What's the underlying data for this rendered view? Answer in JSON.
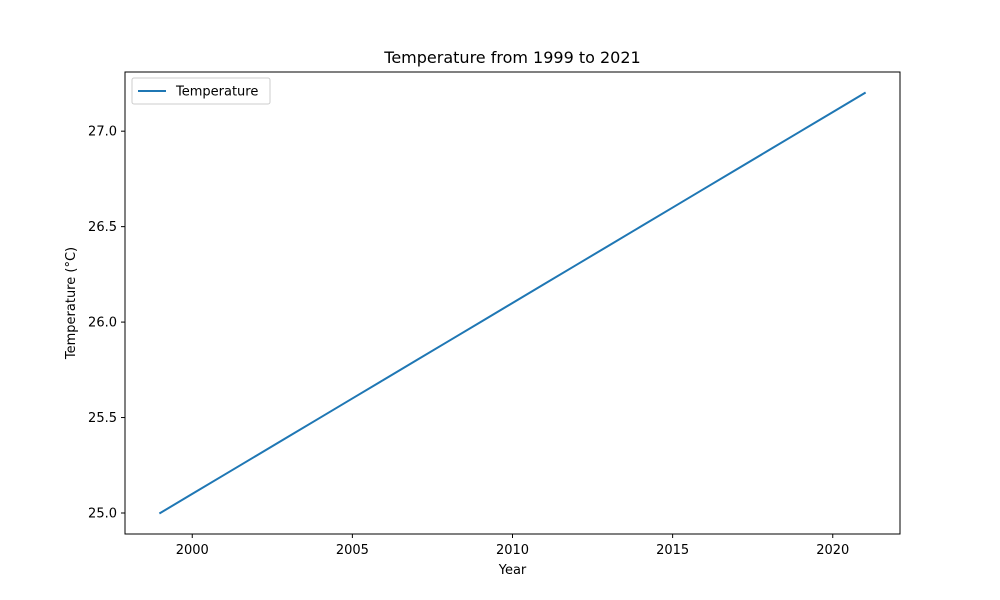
{
  "chart_data": {
    "type": "line",
    "title": "Temperature from 1999 to 2021",
    "xlabel": "Year",
    "ylabel": "Temperature (°C)",
    "xlim": [
      1997.9,
      2022.1
    ],
    "ylim": [
      24.89,
      27.31
    ],
    "xticks": [
      2000,
      2005,
      2010,
      2015,
      2020
    ],
    "xtick_labels": [
      "2000",
      "2005",
      "2010",
      "2015",
      "2020"
    ],
    "yticks": [
      25.0,
      25.5,
      26.0,
      26.5,
      27.0
    ],
    "ytick_labels": [
      "25.0",
      "25.5",
      "26.0",
      "26.5",
      "27.0"
    ],
    "grid": false,
    "legend_position": "top-left",
    "series": [
      {
        "name": "Temperature",
        "color": "#1f77b4",
        "x": [
          1999,
          2000,
          2001,
          2002,
          2003,
          2004,
          2005,
          2006,
          2007,
          2008,
          2009,
          2010,
          2011,
          2012,
          2013,
          2014,
          2015,
          2016,
          2017,
          2018,
          2019,
          2020,
          2021
        ],
        "y": [
          25.0,
          25.1,
          25.2,
          25.3,
          25.4,
          25.5,
          25.6,
          25.7,
          25.8,
          25.9,
          26.0,
          26.1,
          26.2,
          26.3,
          26.4,
          26.5,
          26.6,
          26.7,
          26.8,
          26.9,
          27.0,
          27.1,
          27.2
        ]
      }
    ]
  }
}
